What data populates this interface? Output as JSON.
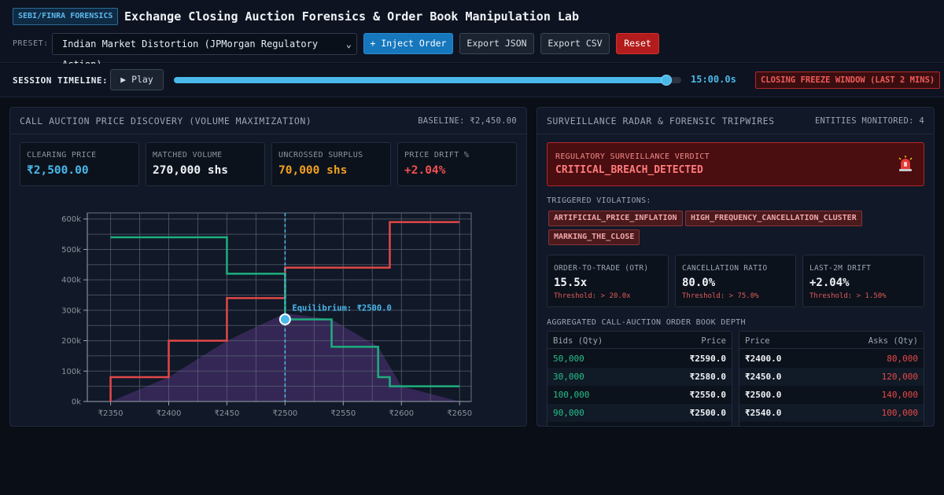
{
  "header": {
    "badge": "SEBI/FINRA FORENSICS",
    "title": "Exchange Closing Auction Forensics & Order Book Manipulation Lab",
    "preset_label": "PRESET:",
    "preset_value": "Indian Market Distortion (JPMorgan Regulatory Action)",
    "buttons": {
      "inject": "+ Inject Order",
      "export_json": "Export JSON",
      "export_csv": "Export CSV",
      "reset": "Reset"
    }
  },
  "timeline": {
    "label": "SESSION TIMELINE:",
    "play": "▶ Play",
    "progress": 0.97,
    "time": "15:00.0s",
    "freeze": "CLOSING FREEZE WINDOW (LAST 2 MINS)"
  },
  "auction_panel": {
    "title": "CALL AUCTION PRICE DISCOVERY (VOLUME MAXIMIZATION)",
    "baseline": "BASELINE: ₹2,450.00",
    "stats": [
      {
        "label": "CLEARING PRICE",
        "value": "₹2,500.00",
        "color": "#4ab8ea"
      },
      {
        "label": "MATCHED VOLUME",
        "value": "270,000 shs",
        "color": "#f0f3f6"
      },
      {
        "label": "UNCROSSED SURPLUS",
        "value": "70,000 shs",
        "color": "#f0a020"
      },
      {
        "label": "PRICE DRIFT %",
        "value": "+2.04%",
        "color": "#f05050"
      }
    ]
  },
  "chart_data": {
    "type": "line",
    "xlim": [
      2330,
      2660
    ],
    "ylim": [
      0,
      620000
    ],
    "x_ticks": [
      2350,
      2400,
      2450,
      2500,
      2550,
      2600,
      2650
    ],
    "x_tick_labels": [
      "₹2350",
      "₹2400",
      "₹2450",
      "₹2500",
      "₹2550",
      "₹2600",
      "₹2650"
    ],
    "y_ticks": [
      0,
      100000,
      200000,
      300000,
      400000,
      500000,
      600000
    ],
    "y_tick_labels": [
      "0k",
      "100k",
      "200k",
      "300k",
      "400k",
      "500k",
      "600k"
    ],
    "series": [
      {
        "color": "#e04848",
        "points": [
          [
            2350,
            0
          ],
          [
            2350,
            80000
          ],
          [
            2400,
            80000
          ],
          [
            2400,
            200000
          ],
          [
            2450,
            200000
          ],
          [
            2450,
            340000
          ],
          [
            2500,
            340000
          ],
          [
            2500,
            440000
          ],
          [
            2590,
            440000
          ],
          [
            2590,
            590000
          ],
          [
            2650,
            590000
          ]
        ]
      },
      {
        "color": "#1eae7e",
        "points": [
          [
            2350,
            540000
          ],
          [
            2450,
            540000
          ],
          [
            2450,
            420000
          ],
          [
            2500,
            420000
          ],
          [
            2500,
            270000
          ],
          [
            2540,
            270000
          ],
          [
            2540,
            180000
          ],
          [
            2580,
            180000
          ],
          [
            2580,
            80000
          ],
          [
            2590,
            80000
          ],
          [
            2590,
            50000
          ],
          [
            2650,
            50000
          ]
        ]
      }
    ],
    "area": {
      "color": "#3b2a5e",
      "points": [
        [
          2350,
          0
        ],
        [
          2400,
          80000
        ],
        [
          2450,
          200000
        ],
        [
          2500,
          290000
        ],
        [
          2540,
          270000
        ],
        [
          2580,
          180000
        ],
        [
          2600,
          50000
        ],
        [
          2650,
          0
        ]
      ]
    },
    "equilibrium": {
      "x": 2500,
      "y": 270000,
      "label": "Equilibrium: ₹2500.0",
      "color": "#4ab8ea"
    }
  },
  "surveillance_panel": {
    "title": "SURVEILLANCE RADAR & FORENSIC TRIPWIRES",
    "entities": "ENTITIES MONITORED: 4",
    "verdict_label": "REGULATORY SURVEILLANCE VERDICT",
    "verdict_value": "CRITICAL_BREACH_DETECTED",
    "siren_icon": "siren-icon",
    "violations_label": "TRIGGERED VIOLATIONS:",
    "violations": [
      "ARTIFICIAL_PRICE_INFLATION",
      "HIGH_FREQUENCY_CANCELLATION_CLUSTER",
      "MARKING_THE_CLOSE"
    ],
    "metrics": [
      {
        "label": "ORDER-TO-TRADE (OTR)",
        "value": "15.5x",
        "threshold": "Threshold: > 20.0x"
      },
      {
        "label": "CANCELLATION RATIO",
        "value": "80.0%",
        "threshold": "Threshold: > 75.0%"
      },
      {
        "label": "LAST-2M DRIFT",
        "value": "+2.04%",
        "threshold": "Threshold: > 1.50%"
      }
    ],
    "book_label": "AGGREGATED CALL-AUCTION ORDER BOOK DEPTH",
    "bids": {
      "headers": [
        "Bids (Qty)",
        "Price"
      ],
      "rows": [
        [
          "50,000",
          "₹2590.0"
        ],
        [
          "30,000",
          "₹2580.0"
        ],
        [
          "100,000",
          "₹2550.0"
        ],
        [
          "90,000",
          "₹2500.0"
        ]
      ]
    },
    "asks": {
      "headers": [
        "Price",
        "Asks (Qty)"
      ],
      "rows": [
        [
          "₹2400.0",
          "80,000"
        ],
        [
          "₹2450.0",
          "120,000"
        ],
        [
          "₹2500.0",
          "140,000"
        ],
        [
          "₹2540.0",
          "100,000"
        ]
      ]
    }
  }
}
